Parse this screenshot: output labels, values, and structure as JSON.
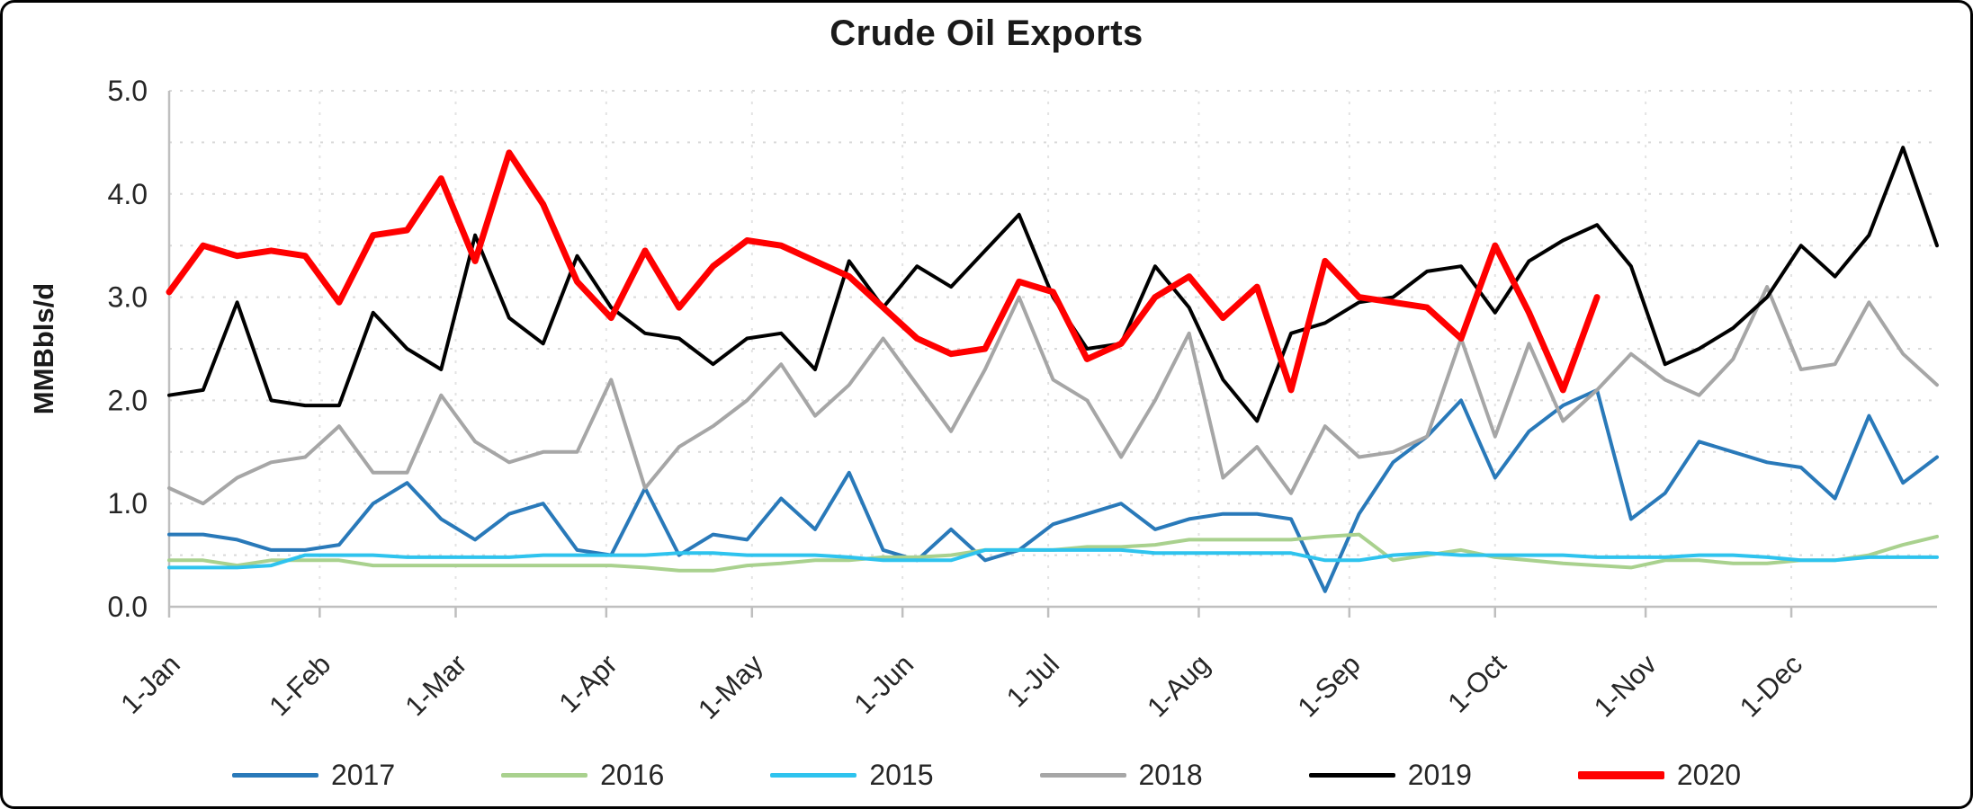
{
  "chart_data": {
    "type": "line",
    "title": "Crude Oil Exports",
    "xlabel": "",
    "ylabel": "MMBbls/d",
    "ylim": [
      0.0,
      5.0
    ],
    "ytick_step": 1.0,
    "ytick_labels": [
      "0.0",
      "1.0",
      "2.0",
      "3.0",
      "4.0",
      "5.0"
    ],
    "grid": "dotted horizontal and vertical, light gray",
    "legend_position": "bottom",
    "x_unit": "weekly observations across one year",
    "days_in_year": 365,
    "xtick_days": [
      1,
      32,
      60,
      91,
      121,
      152,
      182,
      213,
      244,
      274,
      305,
      335
    ],
    "xtick_labels": [
      "1-Jan",
      "1-Feb",
      "1-Mar",
      "1-Apr",
      "1-May",
      "1-Jun",
      "1-Jul",
      "1-Aug",
      "1-Sep",
      "1-Oct",
      "1-Nov",
      "1-Dec"
    ],
    "series": [
      {
        "name": "2017",
        "color": "#2979B9",
        "width": 4,
        "values": [
          0.7,
          0.7,
          0.65,
          0.55,
          0.55,
          0.6,
          1.0,
          1.2,
          0.85,
          0.65,
          0.9,
          1.0,
          0.55,
          0.5,
          1.15,
          0.5,
          0.7,
          0.65,
          1.05,
          0.75,
          1.3,
          0.55,
          0.45,
          0.75,
          0.45,
          0.55,
          0.8,
          0.9,
          1.0,
          0.75,
          0.85,
          0.9,
          0.9,
          0.85,
          0.15,
          0.9,
          1.4,
          1.65,
          2.0,
          1.25,
          1.7,
          1.95,
          2.1,
          0.85,
          1.1,
          1.6,
          1.5,
          1.4,
          1.35,
          1.05,
          1.85,
          1.2,
          1.45
        ]
      },
      {
        "name": "2016",
        "color": "#A9D18E",
        "width": 4,
        "values": [
          0.45,
          0.45,
          0.4,
          0.45,
          0.45,
          0.45,
          0.4,
          0.4,
          0.4,
          0.4,
          0.4,
          0.4,
          0.4,
          0.4,
          0.38,
          0.35,
          0.35,
          0.4,
          0.42,
          0.45,
          0.45,
          0.48,
          0.48,
          0.5,
          0.55,
          0.55,
          0.55,
          0.58,
          0.58,
          0.6,
          0.65,
          0.65,
          0.65,
          0.65,
          0.68,
          0.7,
          0.45,
          0.5,
          0.55,
          0.48,
          0.45,
          0.42,
          0.4,
          0.38,
          0.45,
          0.45,
          0.42,
          0.42,
          0.45,
          0.45,
          0.5,
          0.6,
          0.68
        ]
      },
      {
        "name": "2015",
        "color": "#2EC3EE",
        "width": 4,
        "values": [
          0.38,
          0.38,
          0.38,
          0.4,
          0.5,
          0.5,
          0.5,
          0.48,
          0.48,
          0.48,
          0.48,
          0.5,
          0.5,
          0.5,
          0.5,
          0.52,
          0.52,
          0.5,
          0.5,
          0.5,
          0.48,
          0.45,
          0.45,
          0.45,
          0.55,
          0.55,
          0.55,
          0.55,
          0.55,
          0.52,
          0.52,
          0.52,
          0.52,
          0.52,
          0.45,
          0.45,
          0.5,
          0.52,
          0.5,
          0.5,
          0.5,
          0.5,
          0.48,
          0.48,
          0.48,
          0.5,
          0.5,
          0.48,
          0.45,
          0.45,
          0.48,
          0.48,
          0.48
        ]
      },
      {
        "name": "2018",
        "color": "#A6A6A6",
        "width": 4,
        "values": [
          1.15,
          1.0,
          1.25,
          1.4,
          1.45,
          1.75,
          1.3,
          1.3,
          2.05,
          1.6,
          1.4,
          1.5,
          1.5,
          2.2,
          1.15,
          1.55,
          1.75,
          2.0,
          2.35,
          1.85,
          2.15,
          2.6,
          2.15,
          1.7,
          2.3,
          3.0,
          2.2,
          2.0,
          1.45,
          2.0,
          2.65,
          1.25,
          1.55,
          1.1,
          1.75,
          1.45,
          1.5,
          1.65,
          2.6,
          1.65,
          2.55,
          1.8,
          2.1,
          2.45,
          2.2,
          2.05,
          2.4,
          3.1,
          2.3,
          2.35,
          2.95,
          2.45,
          2.15
        ]
      },
      {
        "name": "2019",
        "color": "#000000",
        "width": 4,
        "values": [
          2.05,
          2.1,
          2.95,
          2.0,
          1.95,
          1.95,
          2.85,
          2.5,
          2.3,
          3.6,
          2.8,
          2.55,
          3.4,
          2.9,
          2.65,
          2.6,
          2.35,
          2.6,
          2.65,
          2.3,
          3.35,
          2.9,
          3.3,
          3.1,
          3.45,
          3.8,
          3.0,
          2.5,
          2.55,
          3.3,
          2.9,
          2.2,
          1.8,
          2.65,
          2.75,
          2.95,
          3.0,
          3.25,
          3.3,
          2.85,
          3.35,
          3.55,
          3.7,
          3.3,
          2.35,
          2.5,
          2.7,
          3.0,
          3.5,
          3.2,
          3.6,
          4.45,
          3.5
        ]
      },
      {
        "name": "2020",
        "color": "#FF0000",
        "width": 7,
        "values": [
          3.05,
          3.5,
          3.4,
          3.45,
          3.4,
          2.95,
          3.6,
          3.65,
          4.15,
          3.35,
          4.4,
          3.9,
          3.15,
          2.8,
          3.45,
          2.9,
          3.3,
          3.55,
          3.5,
          3.35,
          3.2,
          2.9,
          2.6,
          2.45,
          2.5,
          3.15,
          3.05,
          2.4,
          2.55,
          3.0,
          3.2,
          2.8,
          3.1,
          2.1,
          3.35,
          3.0,
          2.95,
          2.9,
          2.6,
          3.5,
          2.85,
          2.1,
          3.0
        ]
      }
    ]
  }
}
